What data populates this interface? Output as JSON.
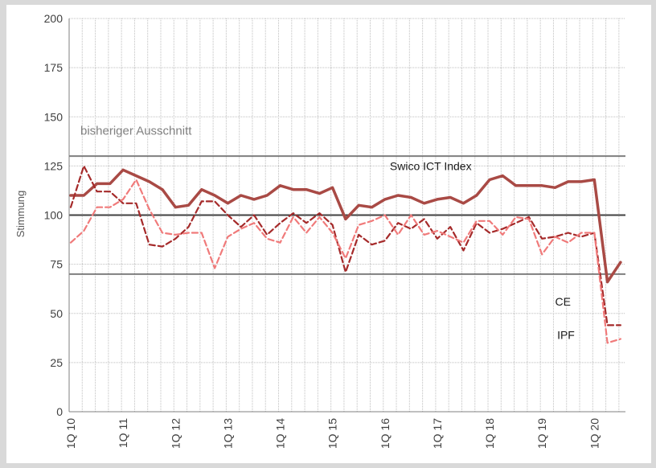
{
  "chart_data": {
    "type": "line",
    "title": "",
    "xlabel": "",
    "ylabel": "Stimmung",
    "ylim": [
      0,
      200
    ],
    "yticks": [
      0,
      25,
      50,
      75,
      100,
      125,
      150,
      175,
      200
    ],
    "grid": true,
    "x_tick_labels": [
      {
        "label": "1Q 10",
        "index": 0
      },
      {
        "label": "1Q 11",
        "index": 4
      },
      {
        "label": "1Q 12",
        "index": 8
      },
      {
        "label": "1Q 13",
        "index": 12
      },
      {
        "label": "1Q 14",
        "index": 16
      },
      {
        "label": "1Q 15",
        "index": 20
      },
      {
        "label": "1Q 16",
        "index": 24
      },
      {
        "label": "1Q 17",
        "index": 28
      },
      {
        "label": "1Q 18",
        "index": 32
      },
      {
        "label": "1Q 19",
        "index": 36
      },
      {
        "label": "1Q 20",
        "index": 40
      }
    ],
    "period_count": 43,
    "reference_lines": [
      {
        "value": 130,
        "color": "#7f7f7f"
      },
      {
        "value": 100,
        "color": "#404040"
      },
      {
        "value": 70,
        "color": "#7f7f7f"
      }
    ],
    "band_label": {
      "text": "bisheriger Ausschnitt",
      "y": 141
    },
    "series": [
      {
        "name": "Swico ICT Index",
        "style": "solid",
        "color": "#a94a45",
        "values": [
          110,
          110,
          116,
          116,
          123,
          120,
          117,
          113,
          104,
          105,
          113,
          110,
          106,
          110,
          108,
          110,
          115,
          113,
          113,
          111,
          114,
          98,
          105,
          104,
          108,
          110,
          109,
          106,
          108,
          109,
          106,
          110,
          118,
          120,
          115,
          115,
          115,
          114,
          117,
          117,
          118,
          66,
          76
        ],
        "label_pos": {
          "x": 27.5,
          "y": 123
        }
      },
      {
        "name": "CE",
        "style": "dashed",
        "color": "#a52a2a",
        "values": [
          104,
          125,
          112,
          112,
          106,
          106,
          85,
          84,
          88,
          94,
          107,
          107,
          100,
          94,
          100,
          90,
          96,
          101,
          96,
          101,
          95,
          71,
          90,
          85,
          87,
          96,
          93,
          98,
          88,
          94,
          82,
          96,
          91,
          93,
          96,
          99,
          88,
          89,
          91,
          89,
          91,
          44,
          44
        ],
        "label_pos": {
          "x": 38.2,
          "y": 54
        }
      },
      {
        "name": "IPF",
        "style": "dashed",
        "color": "#f07a7a",
        "values": [
          86,
          92,
          104,
          104,
          108,
          118,
          103,
          91,
          90,
          91,
          91,
          73,
          89,
          93,
          96,
          88,
          86,
          99,
          91,
          99,
          91,
          78,
          95,
          97,
          100,
          90,
          100,
          90,
          92,
          89,
          86,
          97,
          97,
          90,
          99,
          98,
          80,
          89,
          86,
          91,
          91,
          35,
          37
        ],
        "label_pos": {
          "x": 38.5,
          "y": 37
        }
      }
    ]
  }
}
